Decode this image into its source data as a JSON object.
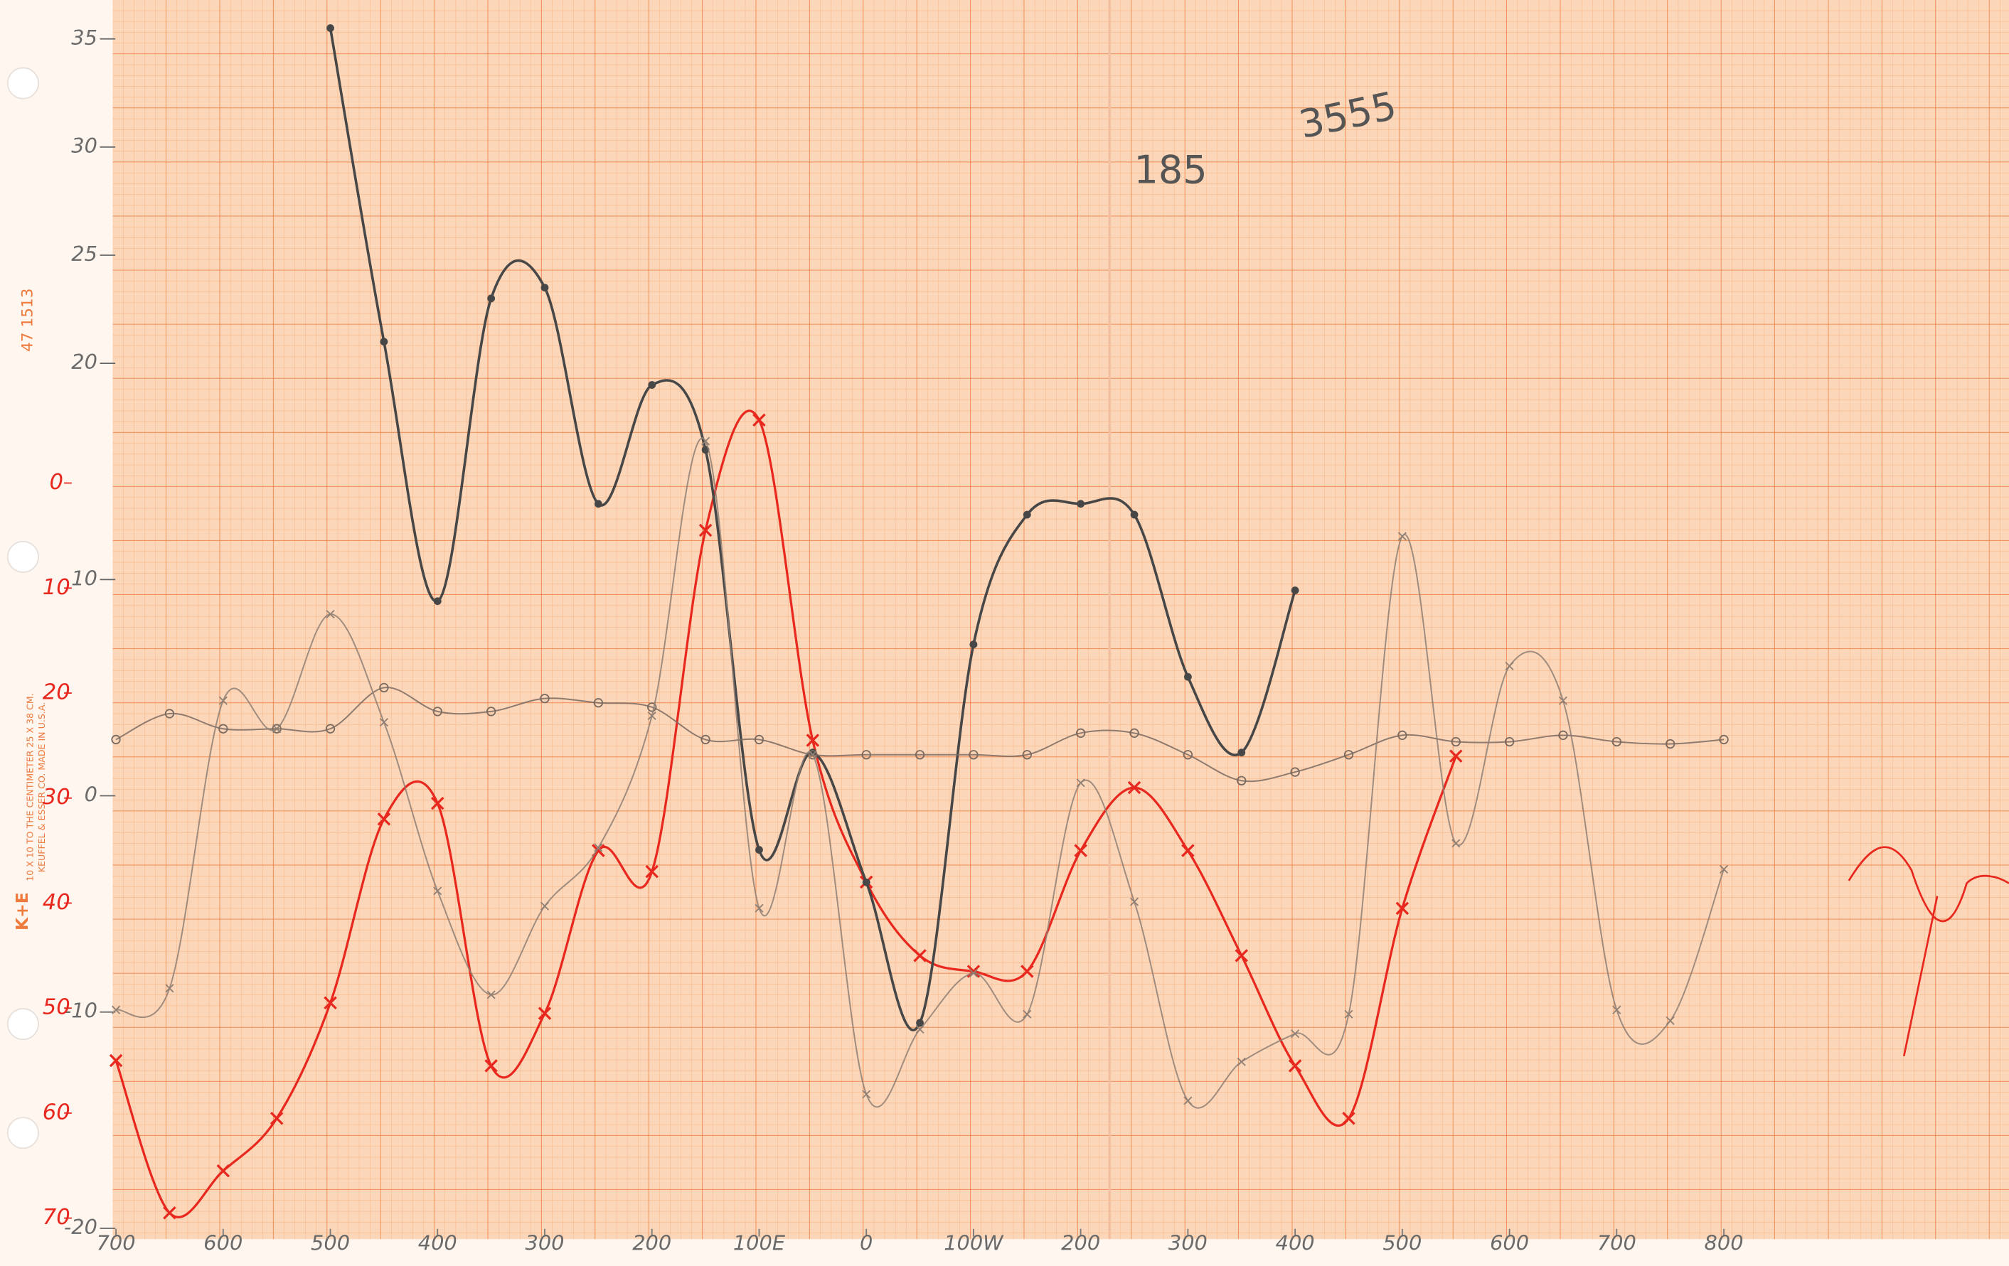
{
  "chart_data": {
    "type": "line",
    "annotations": [
      "185",
      "3555",
      "47 1513",
      "10 X 10 TO THE CENTIMETER 25 X 38 CM.",
      "KEUFFEL & ESSER CO. MADE IN U.S.A.",
      "K+E"
    ],
    "xlim": [
      -703,
      1066
    ],
    "xticks": [
      {
        "value": -700,
        "label": "700"
      },
      {
        "value": -600,
        "label": "600"
      },
      {
        "value": -500,
        "label": "500"
      },
      {
        "value": -400,
        "label": "400"
      },
      {
        "value": -300,
        "label": "300"
      },
      {
        "value": -200,
        "label": "200"
      },
      {
        "value": -100,
        "label": "100E"
      },
      0,
      {
        "value": 100,
        "label": "100W"
      },
      200,
      300,
      400,
      500,
      600,
      700,
      800
    ],
    "ylim": [
      -20.5,
      36.8
    ],
    "yticks": [
      -20,
      -10,
      0,
      10,
      20,
      25,
      30,
      35
    ],
    "y2lim": [
      72,
      -46
    ],
    "y2ticks": [
      0,
      10,
      20,
      30,
      40,
      50,
      60,
      70
    ],
    "grid": false,
    "series": [
      {
        "color": "#e8281e",
        "marker": "x",
        "axis": "y2",
        "x": [
          -700,
          -650,
          -600,
          -550,
          -500,
          -450,
          -400,
          -350,
          -300,
          -250,
          -200,
          -150,
          -100,
          -50,
          0,
          50,
          100,
          150,
          200,
          250,
          300,
          350,
          400,
          450,
          500,
          550
        ],
        "values": [
          55,
          69.5,
          65.5,
          60.5,
          49.5,
          32,
          30.5,
          55.5,
          50.5,
          35,
          37,
          4.5,
          -6,
          24.5,
          38,
          45,
          46.5,
          46.5,
          35,
          29,
          35,
          45,
          55.5,
          60.5,
          40.5,
          26
        ]
      },
      {
        "color": "#474747",
        "marker": "dot",
        "x": [
          -500,
          -450,
          -400,
          -350,
          -300,
          -250,
          -200,
          -150,
          -100,
          -50,
          0,
          50,
          100,
          150,
          200,
          250,
          300,
          350,
          400
        ],
        "values": [
          35.5,
          21,
          9,
          23,
          23.5,
          13.5,
          19,
          16,
          -2.5,
          2,
          -4,
          -10.5,
          7,
          13,
          13.5,
          13,
          5.5,
          2,
          9.5
        ]
      },
      {
        "color": "#7a6a60",
        "marker": "circle",
        "x": [
          -700,
          -650,
          -600,
          -550,
          -500,
          -450,
          -400,
          -350,
          -300,
          -250,
          -200,
          -150,
          -100,
          -50,
          0,
          50,
          100,
          150,
          200,
          250,
          300,
          350,
          400,
          450,
          500,
          550,
          600,
          650,
          700,
          750,
          800
        ],
        "values": [
          2.6,
          3.8,
          3.1,
          3.1,
          3.1,
          5,
          3.9,
          3.9,
          4.5,
          4.3,
          4.1,
          2.6,
          2.6,
          1.9,
          1.9,
          1.9,
          1.9,
          1.9,
          2.9,
          2.9,
          1.9,
          0.7,
          1.1,
          1.9,
          2.8,
          2.5,
          2.5,
          2.8,
          2.5,
          2.4,
          2.6
        ]
      },
      {
        "color": "#8f7f74",
        "marker": "x",
        "x": [
          -700,
          -650,
          -600,
          -550,
          -500,
          -450,
          -400,
          -350,
          -300,
          -250,
          -200,
          -150,
          -100,
          -50,
          0,
          50,
          100,
          150,
          200,
          250,
          300,
          350,
          400,
          450,
          500,
          550,
          600,
          650,
          700,
          750,
          800
        ],
        "values": [
          -9.9,
          -8.9,
          4.4,
          3.1,
          8.4,
          3.4,
          -4.4,
          -9.2,
          -5.1,
          -2.4,
          3.7,
          16.4,
          -5.2,
          1.9,
          -13.8,
          -10.8,
          -8.2,
          -10.1,
          0.6,
          -4.9,
          -14.1,
          -12.3,
          -11,
          -10.1,
          12,
          -2.2,
          6,
          4.4,
          -9.9,
          -10.4,
          -3.4
        ]
      }
    ]
  }
}
